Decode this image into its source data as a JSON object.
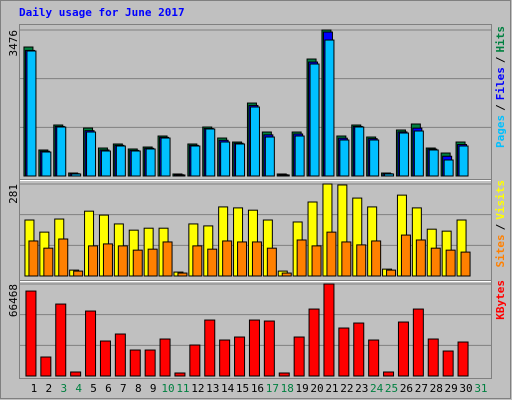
{
  "title": "Daily usage for June 2017",
  "legend_separator": "/",
  "chart_data": [
    {
      "type": "bar",
      "series": [
        {
          "name": "Hits",
          "color": "#008040",
          "values": [
            3071,
            619,
            1214,
            71,
            1142,
            666,
            762,
            643,
            690,
            952,
            48,
            762,
            1166,
            904,
            809,
            1737,
            1047,
            48,
            1047,
            2785,
            3476,
            952,
            1214,
            928,
            71,
            1095,
            1238,
            666,
            547,
            809,
            null
          ]
        },
        {
          "name": "Files",
          "color": "#0000ff",
          "values": [
            2990,
            590,
            1180,
            55,
            1080,
            620,
            730,
            610,
            660,
            920,
            30,
            730,
            1130,
            850,
            780,
            1680,
            980,
            30,
            1000,
            2713,
            3427,
            900,
            1180,
            890,
            55,
            1050,
            1140,
            640,
            470,
            750,
            null
          ]
        },
        {
          "name": "Pages",
          "color": "#00c0ff",
          "values": [
            2976,
            571,
            1166,
            48,
            1047,
            595,
            714,
            595,
            643,
            904,
            24,
            714,
            1119,
            809,
            762,
            1642,
            928,
            24,
            952,
            2666,
            3237,
            857,
            1166,
            857,
            48,
            1023,
            1071,
            619,
            381,
            714,
            null
          ]
        }
      ],
      "ylim": [
        0,
        3476
      ],
      "yticks": [
        3476
      ]
    },
    {
      "type": "bar",
      "series": [
        {
          "name": "Visits",
          "color": "#ffff00",
          "values": [
            171,
            134,
            174,
            18,
            198,
            186,
            159,
            140,
            146,
            146,
            12,
            159,
            153,
            211,
            208,
            201,
            171,
            15,
            165,
            226,
            281,
            278,
            238,
            211,
            21,
            247,
            208,
            143,
            137,
            171,
            null
          ]
        },
        {
          "name": "Sites",
          "color": "#ff8000",
          "values": [
            107,
            85,
            113,
            15,
            92,
            98,
            92,
            79,
            82,
            104,
            9,
            92,
            82,
            107,
            104,
            104,
            85,
            9,
            110,
            92,
            134,
            104,
            95,
            107,
            18,
            125,
            110,
            85,
            79,
            73,
            null
          ]
        }
      ],
      "ylim": [
        0,
        281
      ],
      "yticks": [
        281
      ]
    },
    {
      "type": "bar",
      "series": [
        {
          "name": "KBytes",
          "color": "#ff0000",
          "values": [
            61370,
            13720,
            51980,
            2890,
            46930,
            25270,
            30330,
            18770,
            18770,
            26720,
            2170,
            22380,
            40430,
            25990,
            28160,
            40430,
            39710,
            2170,
            28160,
            48370,
            66468,
            34660,
            38270,
            25990,
            2890,
            38990,
            48370,
            26720,
            18050,
            24550,
            null
          ]
        }
      ],
      "ylim": [
        0,
        66468
      ],
      "yticks": [
        66468
      ],
      "categories": [
        "1",
        "2",
        "3",
        "4",
        "5",
        "6",
        "7",
        "8",
        "9",
        "10",
        "11",
        "12",
        "13",
        "14",
        "15",
        "16",
        "17",
        "18",
        "19",
        "20",
        "21",
        "22",
        "23",
        "24",
        "25",
        "26",
        "27",
        "28",
        "29",
        "30",
        "31"
      ],
      "category_label_colors": [
        "#000000",
        "#000000",
        "#008040",
        "#008040",
        "#000000",
        "#000000",
        "#000000",
        "#000000",
        "#000000",
        "#008040",
        "#008040",
        "#000000",
        "#000000",
        "#000000",
        "#000000",
        "#000000",
        "#008040",
        "#008040",
        "#000000",
        "#000000",
        "#000000",
        "#000000",
        "#000000",
        "#008040",
        "#008040",
        "#000000",
        "#000000",
        "#000000",
        "#000000",
        "#000000",
        "#008040"
      ]
    }
  ]
}
